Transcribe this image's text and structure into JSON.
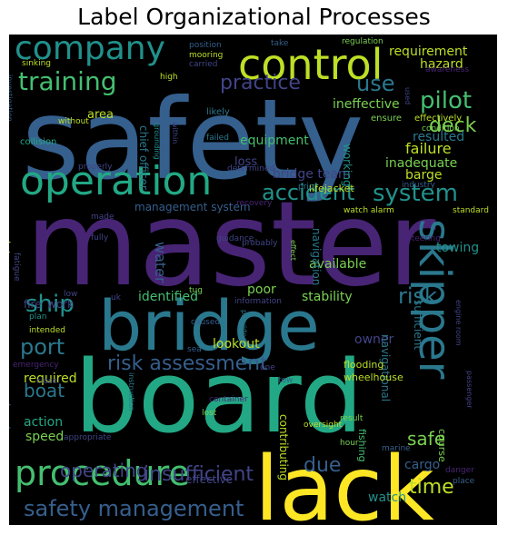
{
  "title": "Label Organizational Processes",
  "colors": {
    "background": "#000000",
    "palette": [
      "#440154",
      "#482475",
      "#414487",
      "#355f8d",
      "#2a788e",
      "#21918c",
      "#22a884",
      "#44bf70",
      "#7ad151",
      "#bddf26",
      "#fde725"
    ]
  },
  "words": [
    {
      "text": "safety",
      "color": "#355f8d"
    },
    {
      "text": "master",
      "color": "#482475"
    },
    {
      "text": "board",
      "color": "#22a884"
    },
    {
      "text": "bridge",
      "color": "#2a788e"
    },
    {
      "text": "lack",
      "color": "#fde725"
    },
    {
      "text": "skipper",
      "color": "#2a788e"
    },
    {
      "text": "company",
      "color": "#21918c"
    },
    {
      "text": "control",
      "color": "#bddf26"
    },
    {
      "text": "operation",
      "color": "#22a884"
    },
    {
      "text": "procedure",
      "color": "#44bf70"
    },
    {
      "text": "safety management",
      "color": "#355f8d"
    },
    {
      "text": "training",
      "color": "#44bf70"
    },
    {
      "text": "accident",
      "color": "#21918c"
    },
    {
      "text": "system",
      "color": "#21918c"
    },
    {
      "text": "risk assessment",
      "color": "#355f8d"
    },
    {
      "text": "practice",
      "color": "#414487"
    },
    {
      "text": "pilot",
      "color": "#44bf70"
    },
    {
      "text": "deck",
      "color": "#7ad151"
    },
    {
      "text": "use",
      "color": "#2a788e"
    },
    {
      "text": "ship",
      "color": "#21918c"
    },
    {
      "text": "port",
      "color": "#2a788e"
    },
    {
      "text": "risk",
      "color": "#2a788e"
    },
    {
      "text": "boat",
      "color": "#2a788e"
    },
    {
      "text": "operating",
      "color": "#414487"
    },
    {
      "text": "insufficient",
      "color": "#414487"
    },
    {
      "text": "safe",
      "color": "#7ad151"
    },
    {
      "text": "time",
      "color": "#bddf26"
    },
    {
      "text": "due",
      "color": "#355f8d"
    },
    {
      "text": "water",
      "color": "#355f8d"
    },
    {
      "text": "requirement",
      "color": "#bddf26"
    },
    {
      "text": "hazard",
      "color": "#bddf26"
    },
    {
      "text": "ineffective",
      "color": "#7ad151"
    },
    {
      "text": "failure",
      "color": "#bddf26"
    },
    {
      "text": "equipment",
      "color": "#44bf70"
    },
    {
      "text": "inadequate",
      "color": "#7ad151"
    },
    {
      "text": "resulted",
      "color": "#2a788e"
    },
    {
      "text": "bridge team",
      "color": "#414487"
    },
    {
      "text": "barge",
      "color": "#bddf26"
    },
    {
      "text": "management system",
      "color": "#355f8d"
    },
    {
      "text": "towing",
      "color": "#21918c"
    },
    {
      "text": "available",
      "color": "#7ad151"
    },
    {
      "text": "stability",
      "color": "#7ad151"
    },
    {
      "text": "identified",
      "color": "#44bf70"
    },
    {
      "text": "poor",
      "color": "#7ad151"
    },
    {
      "text": "lookout",
      "color": "#bddf26"
    },
    {
      "text": "owner",
      "color": "#414487"
    },
    {
      "text": "required",
      "color": "#bddf26"
    },
    {
      "text": "action",
      "color": "#22a884"
    },
    {
      "text": "speed",
      "color": "#7ad151"
    },
    {
      "text": "effective",
      "color": "#414487"
    },
    {
      "text": "cargo",
      "color": "#355f8d"
    },
    {
      "text": "watch",
      "color": "#21918c"
    },
    {
      "text": "contributing",
      "color": "#bddf26"
    },
    {
      "text": "navigational",
      "color": "#2a788e"
    },
    {
      "text": "maintenance",
      "color": "#bddf26"
    },
    {
      "text": "level",
      "color": "#355f8d"
    },
    {
      "text": "area",
      "color": "#bddf26"
    },
    {
      "text": "loss",
      "color": "#414487"
    },
    {
      "text": "chief officer",
      "color": "#2a788e"
    },
    {
      "text": "lifejacket",
      "color": "#bddf26"
    },
    {
      "text": "collision",
      "color": "#22a884"
    },
    {
      "text": "fire",
      "color": "#414487"
    },
    {
      "text": "work",
      "color": "#414487"
    },
    {
      "text": "working",
      "color": "#21918c"
    },
    {
      "text": "navigation",
      "color": "#2a788e"
    },
    {
      "text": "sufficient",
      "color": "#2a788e"
    },
    {
      "text": "fishing",
      "color": "#44bf70"
    },
    {
      "text": "course",
      "color": "#7ad151"
    },
    {
      "text": "flooding",
      "color": "#bddf26"
    },
    {
      "text": "wheelhouse",
      "color": "#bddf26"
    },
    {
      "text": "position",
      "color": "#355f8d"
    },
    {
      "text": "mooring",
      "color": "#bddf26"
    },
    {
      "text": "carried",
      "color": "#414487"
    },
    {
      "text": "take",
      "color": "#355f8d"
    },
    {
      "text": "regulation",
      "color": "#7ad151"
    },
    {
      "text": "awareness",
      "color": "#482475"
    },
    {
      "text": "sinking",
      "color": "#bddf26"
    },
    {
      "text": "high",
      "color": "#bddf26"
    },
    {
      "text": "likely",
      "color": "#2a788e"
    },
    {
      "text": "failed",
      "color": "#2a788e"
    },
    {
      "text": "ensure",
      "color": "#7ad151"
    },
    {
      "text": "effectively",
      "color": "#bddf26"
    },
    {
      "text": "condition",
      "color": "#7ad151"
    },
    {
      "text": "investigation",
      "color": "#355f8d"
    },
    {
      "text": "without",
      "color": "#bddf26"
    },
    {
      "text": "properly",
      "color": "#414487"
    },
    {
      "text": "grounding",
      "color": "#21918c"
    },
    {
      "text": "within",
      "color": "#414487"
    },
    {
      "text": "determined",
      "color": "#414487"
    },
    {
      "text": "prior",
      "color": "#2a788e"
    },
    {
      "text": "industry",
      "color": "#355f8d"
    },
    {
      "text": "recovery",
      "color": "#482475"
    },
    {
      "text": "made",
      "color": "#414487"
    },
    {
      "text": "watch alarm",
      "color": "#bddf26"
    },
    {
      "text": "standard",
      "color": "#bddf26"
    },
    {
      "text": "guidance",
      "color": "#414487"
    },
    {
      "text": "probably",
      "color": "#414487"
    },
    {
      "text": "steering",
      "color": "#482475"
    },
    {
      "text": "fully",
      "color": "#414487"
    },
    {
      "text": "fatigue",
      "color": "#414487"
    },
    {
      "text": "effect",
      "color": "#7ad151"
    },
    {
      "text": "tug",
      "color": "#7ad151"
    },
    {
      "text": "uk",
      "color": "#414487"
    },
    {
      "text": "information",
      "color": "#414487"
    },
    {
      "text": "low",
      "color": "#414487"
    },
    {
      "text": "plan",
      "color": "#21918c"
    },
    {
      "text": "intended",
      "color": "#bddf26"
    },
    {
      "text": "caused",
      "color": "#355f8d"
    },
    {
      "text": "provided",
      "color": "#2a788e"
    },
    {
      "text": "one",
      "color": "#414487"
    },
    {
      "text": "sea",
      "color": "#355f8d"
    },
    {
      "text": "tow",
      "color": "#355f8d"
    },
    {
      "text": "emergency",
      "color": "#482475"
    },
    {
      "text": "close",
      "color": "#414487"
    },
    {
      "text": "instruction",
      "color": "#2a788e"
    },
    {
      "text": "lost",
      "color": "#7ad151"
    },
    {
      "text": "result",
      "color": "#7ad151"
    },
    {
      "text": "container",
      "color": "#482475"
    },
    {
      "text": "oversight",
      "color": "#bddf26"
    },
    {
      "text": "hour",
      "color": "#7ad151"
    },
    {
      "text": "marine",
      "color": "#355f8d"
    },
    {
      "text": "appropriate",
      "color": "#414487"
    },
    {
      "text": "danger",
      "color": "#482475"
    },
    {
      "text": "place",
      "color": "#355f8d"
    },
    {
      "text": "passenger",
      "color": "#414487"
    },
    {
      "text": "engine room",
      "color": "#414487"
    },
    {
      "text": "operated",
      "color": "#414487"
    },
    {
      "text": "contact",
      "color": "#414487"
    },
    {
      "text": "used",
      "color": "#414487"
    }
  ]
}
